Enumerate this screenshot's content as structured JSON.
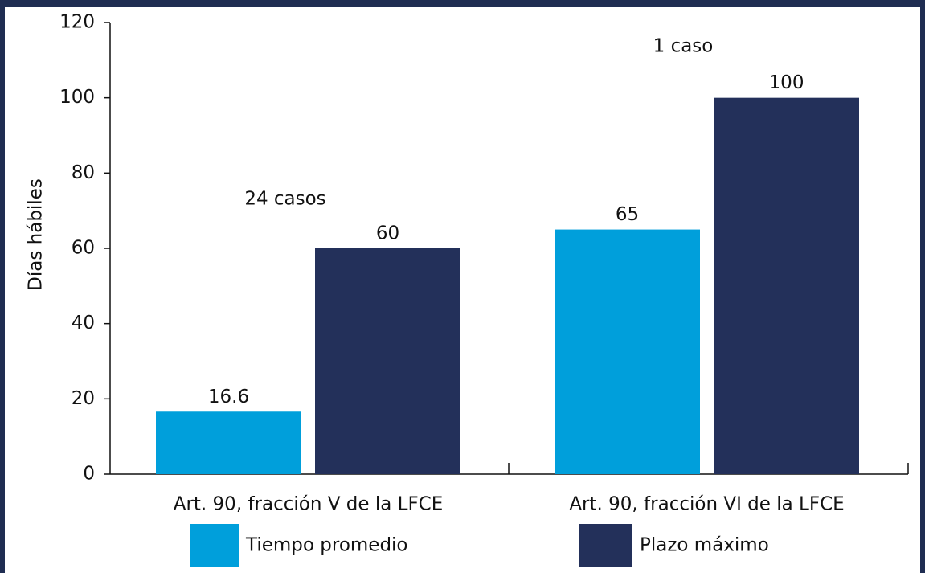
{
  "chart_data": {
    "type": "bar",
    "ylabel": "Días hábiles",
    "categories": [
      "Art. 90, fracción V de la LFCE",
      "Art. 90, fracción VI de la LFCE"
    ],
    "series": [
      {
        "name": "Tiempo promedio",
        "color": "#009fdb",
        "values": [
          16.6,
          65
        ]
      },
      {
        "name": "Plazo máximo",
        "color": "#23305a",
        "values": [
          60,
          100
        ]
      }
    ],
    "annotations": [
      "24 casos",
      "1 caso"
    ],
    "ylim": [
      0,
      120
    ],
    "yticks": [
      0,
      20,
      40,
      60,
      80,
      100,
      120
    ]
  }
}
